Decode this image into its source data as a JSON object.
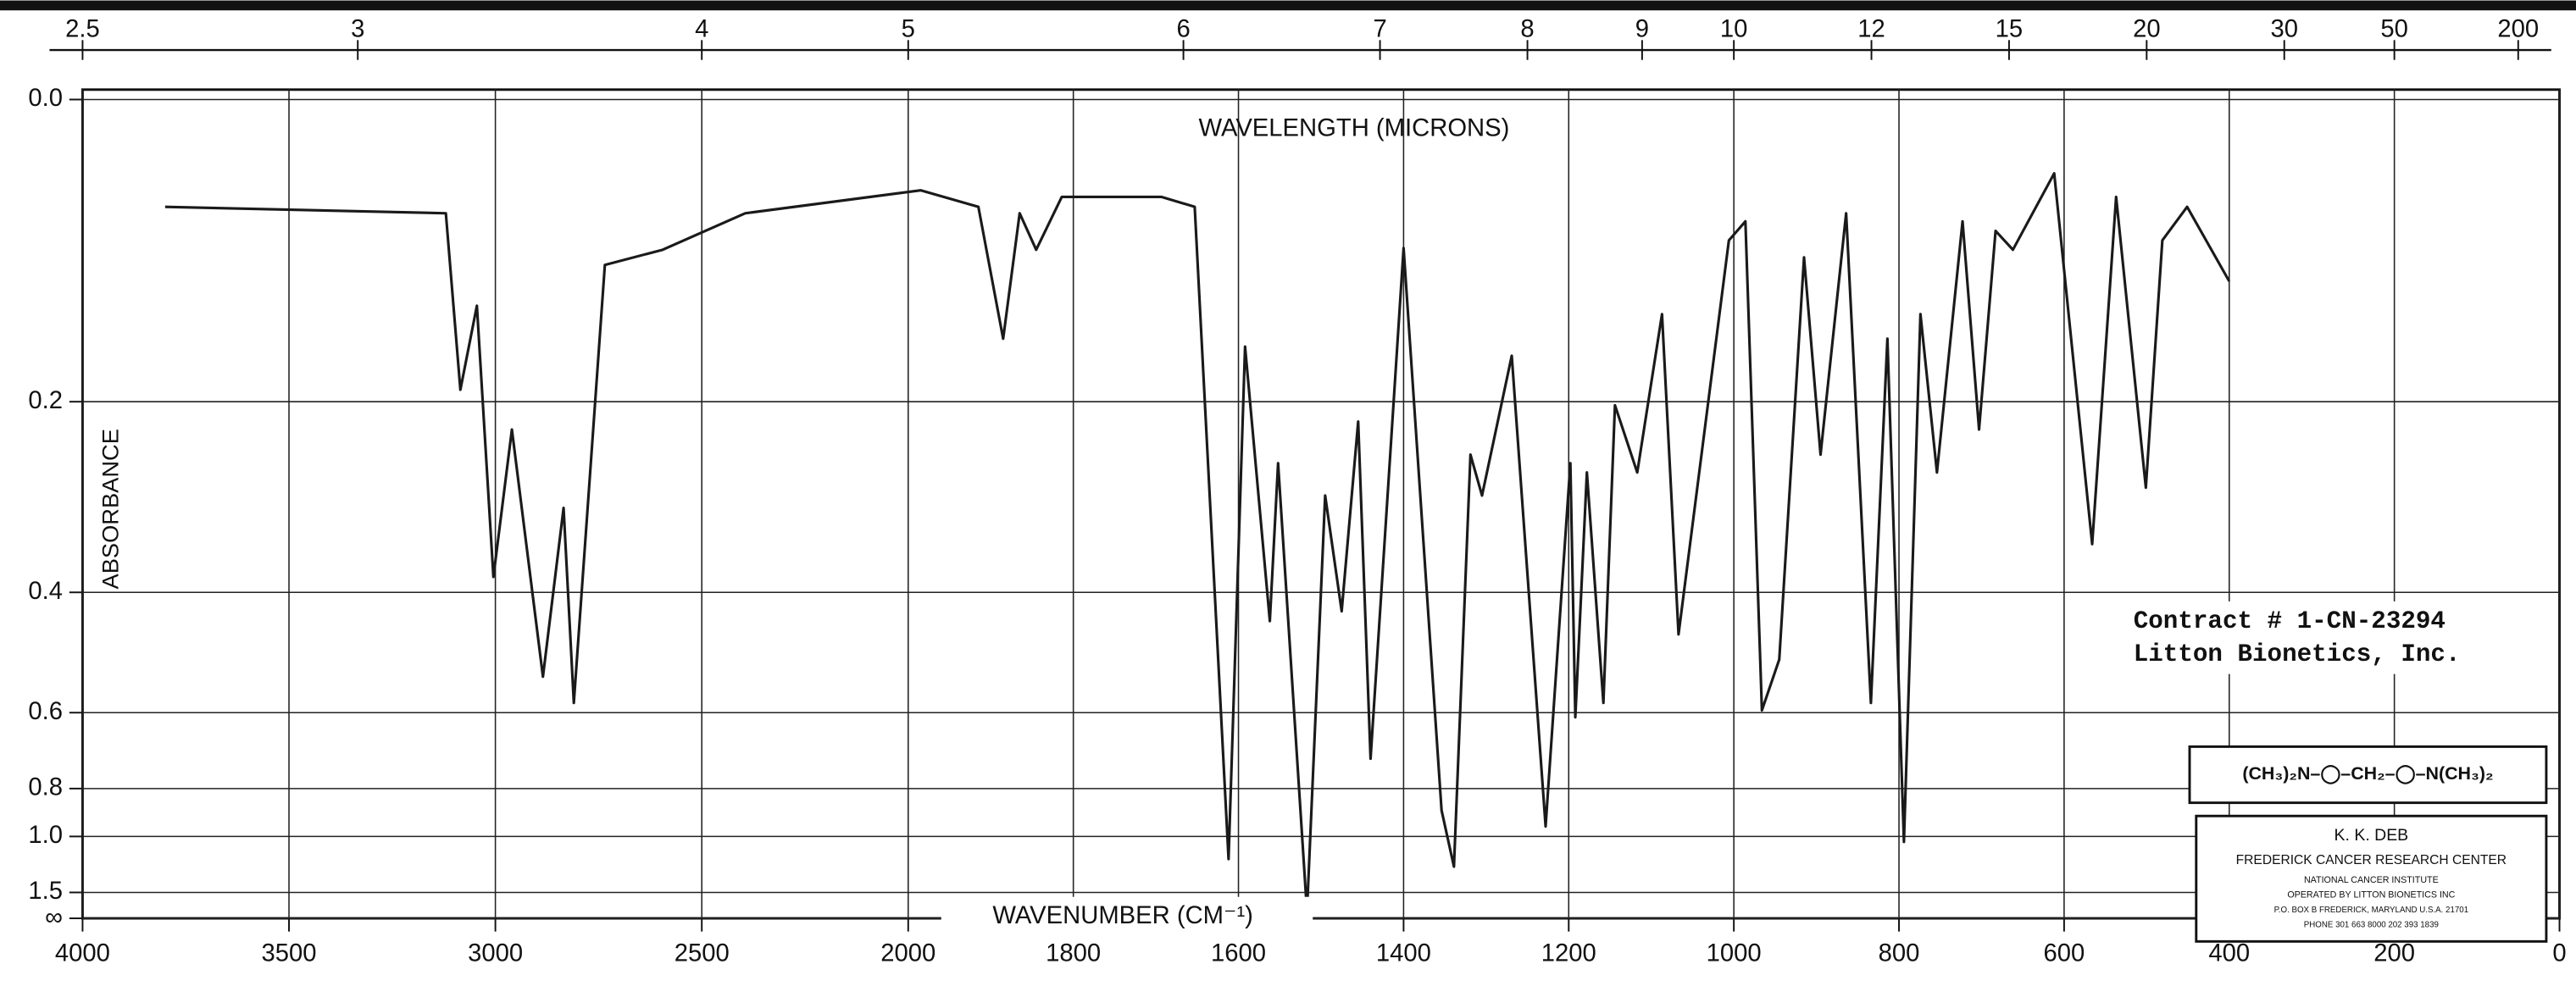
{
  "chart_data": {
    "type": "line",
    "title": "WAVELENGTH (MICRONS)",
    "x_label": "WAVENUMBER (CM⁻¹)",
    "y_label": "ABSORBANCE",
    "annotations": [
      "Contract # 1-CN-23294",
      "Litton Bionetics, Inc.",
      "(CH₃)₂N–◯–CH₂–◯–N(CH₃)₂"
    ],
    "label_box": [
      "K. K. DEB",
      "FREDERICK CANCER RESEARCH CENTER",
      "NATIONAL CANCER INSTITUTE",
      "OPERATED BY LITTON BIONETICS INC",
      "P.O. BOX B FREDERICK, MARYLAND U.S.A. 21701",
      "PHONE 301 663 8000  202 393 1839"
    ],
    "xlim": [
      4000,
      0
    ],
    "x_scale_change": 2000,
    "x_scale_ratio": 2,
    "xticks": [
      4000,
      3500,
      3000,
      2500,
      2000,
      1800,
      1600,
      1400,
      1200,
      1000,
      800,
      600,
      400,
      200,
      0
    ],
    "x2ticks": [
      2.5,
      3,
      4,
      5,
      6,
      7,
      8,
      9,
      10,
      12,
      15,
      20,
      30,
      50,
      200
    ],
    "y_scale": "transmittance",
    "ylim": [
      0,
      null
    ],
    "yticks": [
      {
        "value": 0,
        "label": "0.0"
      },
      0.2,
      0.4,
      0.6,
      0.8,
      {
        "value": 1,
        "label": "1.0"
      },
      1.5,
      {
        "value": null,
        "label": "∞"
      }
    ],
    "grid": true,
    "series": [
      {
        "name": "spectrum",
        "color": "#1a1a1a",
        "x": [
          3800,
          3120,
          3085,
          3045,
          3005,
          2960,
          2885,
          2835,
          2810,
          2735,
          2595,
          2395,
          1985,
          1915,
          1885,
          1865,
          1845,
          1814,
          1693,
          1653,
          1612,
          1592,
          1562,
          1552,
          1517,
          1495,
          1475,
          1455,
          1440,
          1400,
          1354,
          1339,
          1319,
          1305,
          1269,
          1228,
          1198,
          1192,
          1178,
          1158,
          1144,
          1117,
          1087,
          1067,
          1006,
          986,
          966,
          945,
          915,
          895,
          864,
          834,
          814,
          794,
          774,
          754,
          723,
          703,
          683,
          662,
          612,
          566,
          537,
          501,
          481,
          451,
          400
        ],
        "values": [
          0.061,
          0.065,
          0.19,
          0.126,
          0.38,
          0.224,
          0.53,
          0.3,
          0.58,
          0.098,
          0.088,
          0.065,
          0.051,
          0.061,
          0.15,
          0.065,
          0.088,
          0.055,
          0.055,
          0.061,
          1.14,
          0.156,
          0.44,
          0.255,
          2.1,
          0.287,
          0.426,
          0.217,
          0.71,
          0.087,
          0.88,
          1.2,
          0.247,
          0.287,
          0.163,
          0.95,
          0.255,
          0.61,
          0.264,
          0.58,
          0.203,
          0.264,
          0.132,
          0.46,
          0.082,
          0.07,
          0.595,
          0.5,
          0.093,
          0.247,
          0.065,
          0.58,
          0.15,
          1.03,
          0.132,
          0.264,
          0.07,
          0.224,
          0.076,
          0.088,
          0.041,
          0.34,
          0.055,
          0.279,
          0.082,
          0.061,
          0.109
        ]
      }
    ]
  }
}
